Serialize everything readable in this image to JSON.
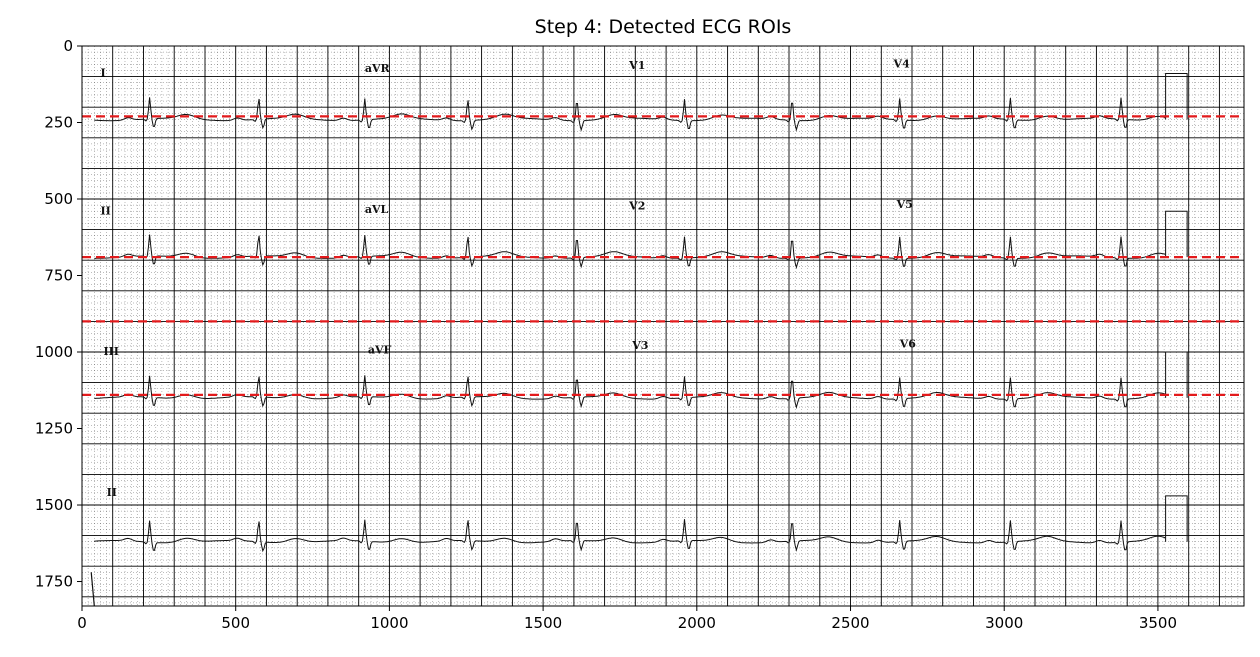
{
  "chart_data": {
    "type": "image",
    "title": "Step 4: Detected ECG ROIs",
    "xlabel": "",
    "ylabel": "",
    "xlim": [
      0,
      3780
    ],
    "ylim": [
      1830,
      0
    ],
    "y_inverted": true,
    "xticks": [
      0,
      500,
      1000,
      1500,
      2000,
      2500,
      3000,
      3500
    ],
    "yticks": [
      0,
      250,
      500,
      750,
      1000,
      1250,
      1500,
      1750
    ],
    "roi_lines": [
      {
        "y": 230,
        "color": "#e31a1c",
        "style": "dashed"
      },
      {
        "y": 690,
        "color": "#e31a1c",
        "style": "dashed"
      },
      {
        "y": 900,
        "color": "#e31a1c",
        "style": "dashed"
      },
      {
        "y": 1140,
        "color": "#e31a1c",
        "style": "dashed"
      }
    ],
    "leads": [
      {
        "label": "I",
        "x": 60,
        "y": 100
      },
      {
        "label": "aVR",
        "x": 920,
        "y": 85
      },
      {
        "label": "V1",
        "x": 1780,
        "y": 75
      },
      {
        "label": "V4",
        "x": 2640,
        "y": 70
      },
      {
        "label": "II",
        "x": 60,
        "y": 550
      },
      {
        "label": "aVL",
        "x": 920,
        "y": 545
      },
      {
        "label": "V2",
        "x": 1780,
        "y": 535
      },
      {
        "label": "V5",
        "x": 2650,
        "y": 530
      },
      {
        "label": "III",
        "x": 70,
        "y": 1010
      },
      {
        "label": "aVF",
        "x": 930,
        "y": 1005
      },
      {
        "label": "V3",
        "x": 1790,
        "y": 990
      },
      {
        "label": "V6",
        "x": 2660,
        "y": 985
      },
      {
        "label": "II",
        "x": 80,
        "y": 1470
      }
    ],
    "traces": [
      {
        "baseline": 240,
        "beats": [
          220,
          575,
          920,
          1255,
          1610,
          1960,
          2310,
          2660,
          3020,
          3380
        ],
        "calibration_x": 3525
      },
      {
        "baseline": 690,
        "beats": [
          220,
          575,
          920,
          1255,
          1610,
          1960,
          2310,
          2660,
          3020,
          3380
        ],
        "calibration_x": 3525
      },
      {
        "baseline": 1150,
        "beats": [
          220,
          575,
          920,
          1255,
          1610,
          1960,
          2310,
          2660,
          3020,
          3380
        ],
        "calibration_x": 3525
      },
      {
        "baseline": 1620,
        "beats": [
          220,
          575,
          920,
          1255,
          1610,
          1960,
          2310,
          2660,
          3020,
          3380
        ],
        "calibration_x": 3525
      }
    ],
    "grid": true,
    "legend": "none"
  }
}
